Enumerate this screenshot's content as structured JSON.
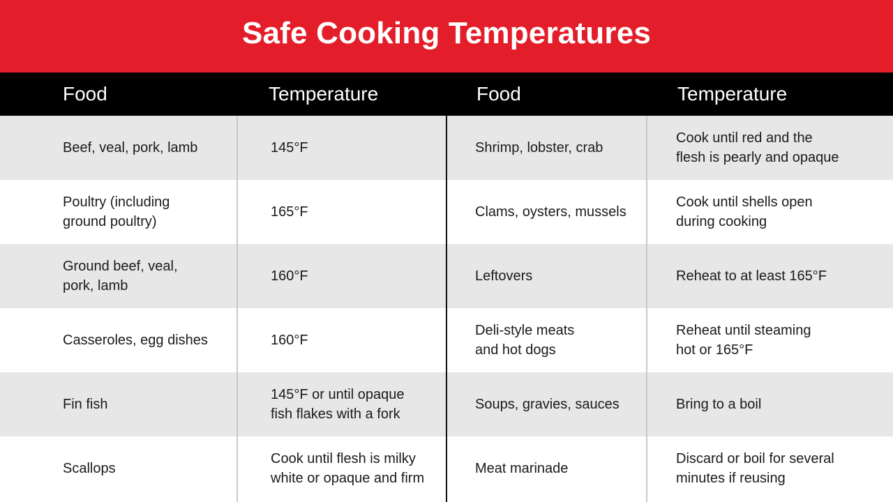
{
  "title": "Safe Cooking Temperatures",
  "headers": [
    "Food",
    "Temperature",
    "Food",
    "Temperature"
  ],
  "colors": {
    "title_bg": "#e31e2a",
    "header_bg": "#000000",
    "row_shaded": "#e6e7e6",
    "row_plain": "#ffffff"
  },
  "rows": [
    {
      "food_left": "Beef, veal, pork, lamb",
      "temp_left": "145°F",
      "food_right": "Shrimp, lobster, crab",
      "temp_right": "Cook until red and the\nflesh is pearly and opaque"
    },
    {
      "food_left": "Poultry (including\nground poultry)",
      "temp_left": "165°F",
      "food_right": "Clams, oysters, mussels",
      "temp_right": "Cook until shells open\nduring cooking"
    },
    {
      "food_left": "Ground beef, veal,\npork, lamb",
      "temp_left": "160°F",
      "food_right": "Leftovers",
      "temp_right": "Reheat to at least 165°F"
    },
    {
      "food_left": "Casseroles, egg dishes",
      "temp_left": "160°F",
      "food_right": "Deli-style meats\nand hot dogs",
      "temp_right": "Reheat until steaming\nhot or 165°F"
    },
    {
      "food_left": "Fin fish",
      "temp_left": "145°F or until opaque\nfish flakes with a fork",
      "food_right": "Soups, gravies, sauces",
      "temp_right": "Bring to a boil"
    },
    {
      "food_left": "Scallops",
      "temp_left": "Cook until flesh is milky\nwhite or opaque and firm",
      "food_right": "Meat marinade",
      "temp_right": "Discard or boil for several\nminutes if reusing"
    }
  ]
}
